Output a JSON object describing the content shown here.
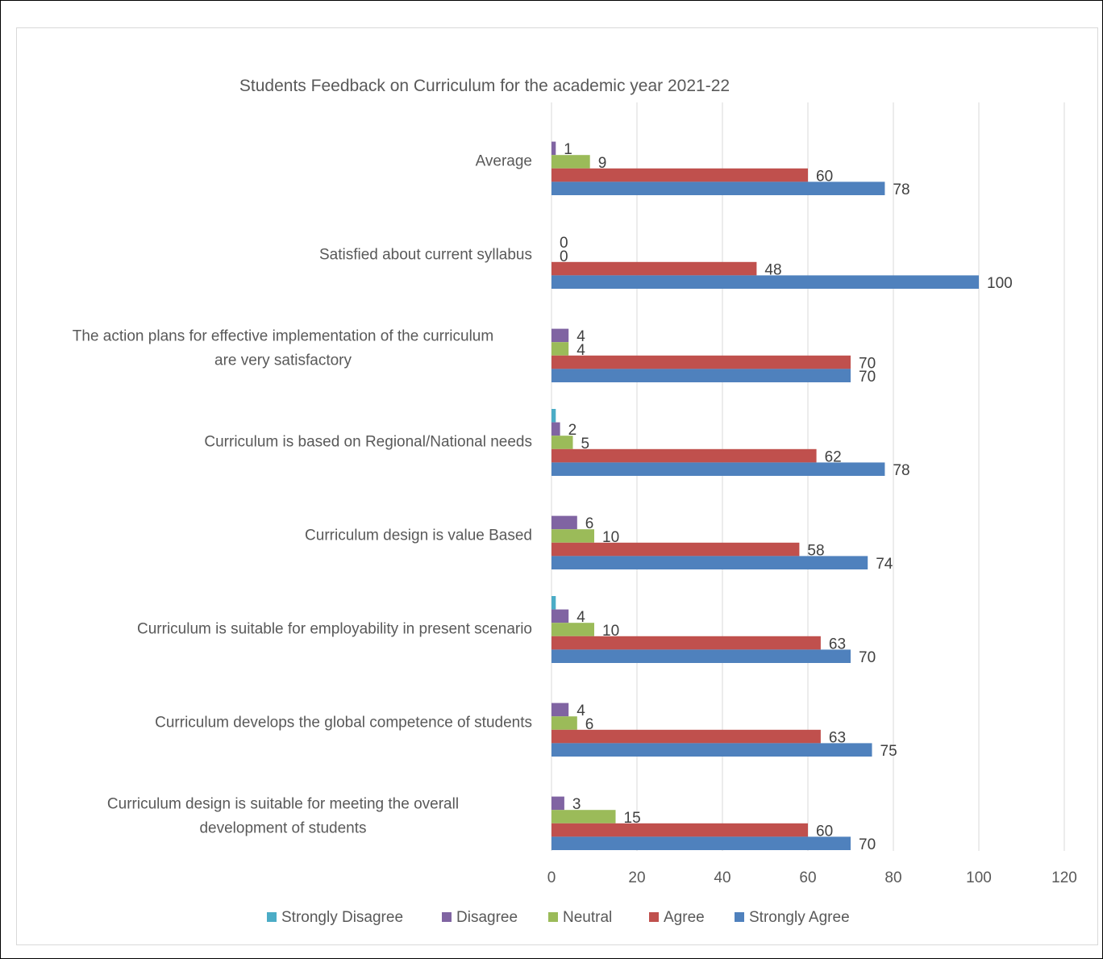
{
  "chart_data": {
    "type": "bar",
    "orientation": "horizontal",
    "title": "Students Feedback on Curriculum for the academic year 2021-22",
    "xlabel": "",
    "ylabel": "",
    "xlim": [
      0,
      120
    ],
    "xticks": [
      0,
      20,
      40,
      60,
      80,
      100,
      120
    ],
    "grid": true,
    "legend_position": "bottom",
    "categories": [
      [
        "Average"
      ],
      [
        "Satisfied about current syllabus"
      ],
      [
        "The action plans for effective implementation of the curriculum",
        "are very satisfactory"
      ],
      [
        "Curriculum is based on Regional/National needs"
      ],
      [
        "Curriculum design is value Based"
      ],
      [
        "Curriculum is suitable for employability in present scenario"
      ],
      [
        "Curriculum develops the global competence of students"
      ],
      [
        "Curriculum design is suitable for meeting the overall",
        "development of students"
      ]
    ],
    "series": [
      {
        "name": "Strongly Disagree",
        "color": "#4bacc6",
        "values": [
          null,
          null,
          null,
          1,
          null,
          1,
          null,
          null
        ],
        "labels": [
          "",
          "",
          "",
          "",
          "",
          "",
          "",
          ""
        ]
      },
      {
        "name": "Disagree",
        "color": "#8064a2",
        "values": [
          1,
          0,
          4,
          2,
          6,
          4,
          4,
          3
        ],
        "labels": [
          "1",
          "0",
          "4",
          "2",
          "6",
          "4",
          "4",
          "3"
        ]
      },
      {
        "name": "Neutral",
        "color": "#9bbb59",
        "values": [
          9,
          0,
          4,
          5,
          10,
          10,
          6,
          15
        ],
        "labels": [
          "9",
          "0",
          "4",
          "5",
          "10",
          "10",
          "6",
          "15"
        ]
      },
      {
        "name": "Agree",
        "color": "#c0504d",
        "values": [
          60,
          48,
          70,
          62,
          58,
          63,
          63,
          60
        ],
        "labels": [
          "60",
          "48",
          "70",
          "62",
          "58",
          "63",
          "63",
          "60"
        ]
      },
      {
        "name": "Strongly Agree",
        "color": "#4f81bd",
        "values": [
          78,
          100,
          70,
          78,
          74,
          70,
          75,
          70
        ],
        "labels": [
          "78",
          "100",
          "70",
          "78",
          "74",
          "70",
          "75",
          "70"
        ]
      }
    ]
  }
}
